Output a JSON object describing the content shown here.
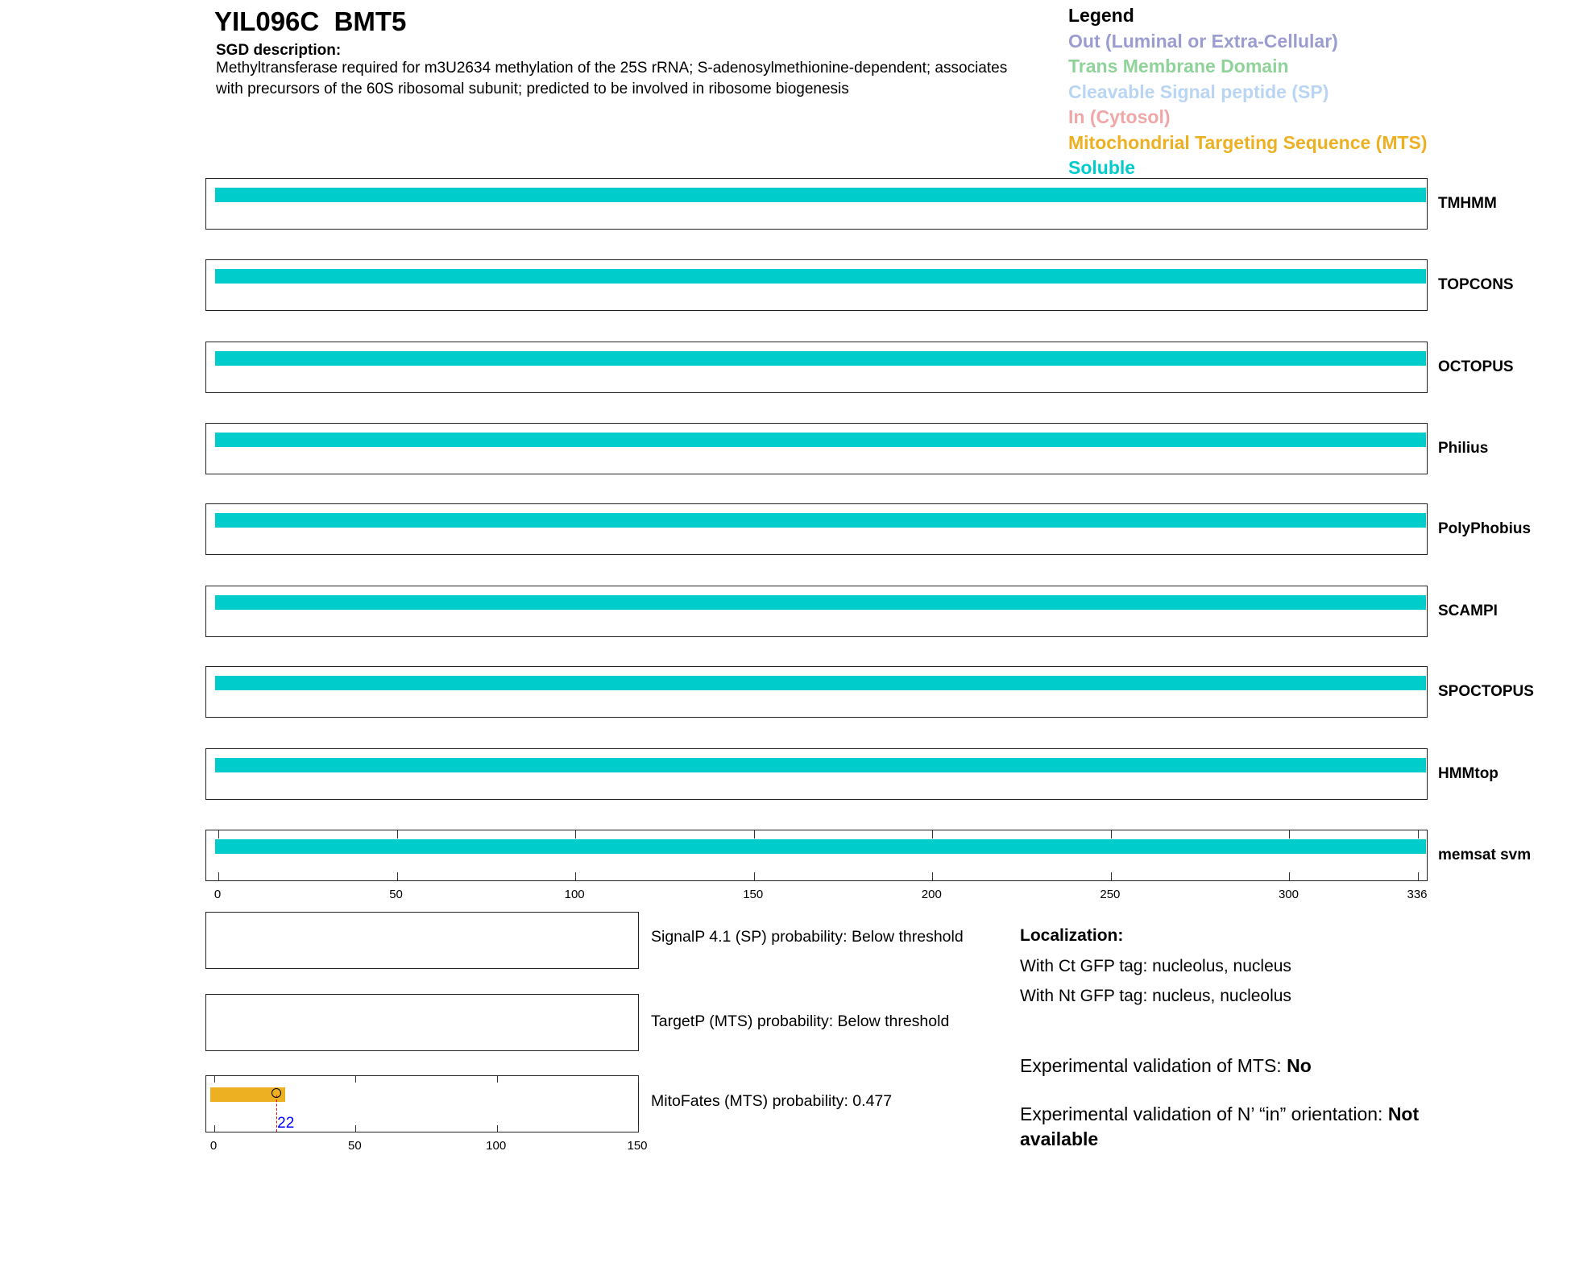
{
  "header": {
    "title": "YIL096C  BMT5",
    "sgd_heading": "SGD description:",
    "sgd_text": "Methyltransferase required for m3U2634 methylation of the 25S rRNA; S-adenosylmethionine-dependent; associates with precursors of the 60S ribosomal subunit; predicted to be involved in ribosome biogenesis"
  },
  "legend": {
    "title": "Legend",
    "items": [
      {
        "label": "Out (Luminal or Extra-Cellular)",
        "color": "#9b9ccf"
      },
      {
        "label": "Trans Membrane Domain",
        "color": "#8fd39a"
      },
      {
        "label": "Cleavable Signal peptide (SP)",
        "color": "#b9d5f2"
      },
      {
        "label": "In (Cytosol)",
        "color": "#efa7a7"
      },
      {
        "label": "Mitochondrial Targeting Sequence (MTS)",
        "color": "#ecb022"
      },
      {
        "label": "Soluble",
        "color": "#00cccc"
      }
    ]
  },
  "chart_data": [
    {
      "type": "bar",
      "title": "",
      "xlim": [
        0,
        336
      ],
      "xticks": [
        "0",
        "50",
        "100",
        "150",
        "200",
        "250",
        "300",
        "336"
      ],
      "tracks": [
        {
          "name": "TMHMM",
          "segments": [
            {
              "start": 1,
              "end": 336,
              "class": "Soluble"
            }
          ]
        },
        {
          "name": "TOPCONS",
          "segments": [
            {
              "start": 1,
              "end": 336,
              "class": "Soluble"
            }
          ]
        },
        {
          "name": "OCTOPUS",
          "segments": [
            {
              "start": 1,
              "end": 336,
              "class": "Soluble"
            }
          ]
        },
        {
          "name": "Philius",
          "segments": [
            {
              "start": 1,
              "end": 336,
              "class": "Soluble"
            }
          ]
        },
        {
          "name": "PolyPhobius",
          "segments": [
            {
              "start": 1,
              "end": 336,
              "class": "Soluble"
            }
          ]
        },
        {
          "name": "SCAMPI",
          "segments": [
            {
              "start": 1,
              "end": 336,
              "class": "Soluble"
            }
          ]
        },
        {
          "name": "SPOCTOPUS",
          "segments": [
            {
              "start": 1,
              "end": 336,
              "class": "Soluble"
            }
          ]
        },
        {
          "name": "HMMtop",
          "segments": [
            {
              "start": 1,
              "end": 336,
              "class": "Soluble"
            }
          ]
        },
        {
          "name": "memsat svm",
          "segments": [
            {
              "start": 1,
              "end": 336,
              "class": "Soluble"
            }
          ]
        }
      ]
    },
    {
      "type": "bar",
      "xlim": [
        0,
        150
      ],
      "xticks": [
        "0",
        "50",
        "100",
        "150"
      ],
      "predictors": [
        {
          "label": "SignalP 4.1 (SP) probability: Below threshold"
        },
        {
          "label": "TargetP (MTS) probability: Below threshold"
        },
        {
          "label": "MitoFates (MTS) probability: 0.477",
          "mts_start": 0,
          "mts_end": 25,
          "cleavage_site": 22,
          "cleavage_label": "22"
        }
      ]
    }
  ],
  "localization": {
    "heading": "Localization:",
    "ct": "With Ct GFP tag: nucleolus, nucleus",
    "nt": "With Nt GFP tag: nucleus, nucleolus",
    "mts_val_label": "Experimental validation of MTS: ",
    "mts_val": "No",
    "orient_label": "Experimental validation of N’ “in” orientation: ",
    "orient_val": "Not available"
  }
}
